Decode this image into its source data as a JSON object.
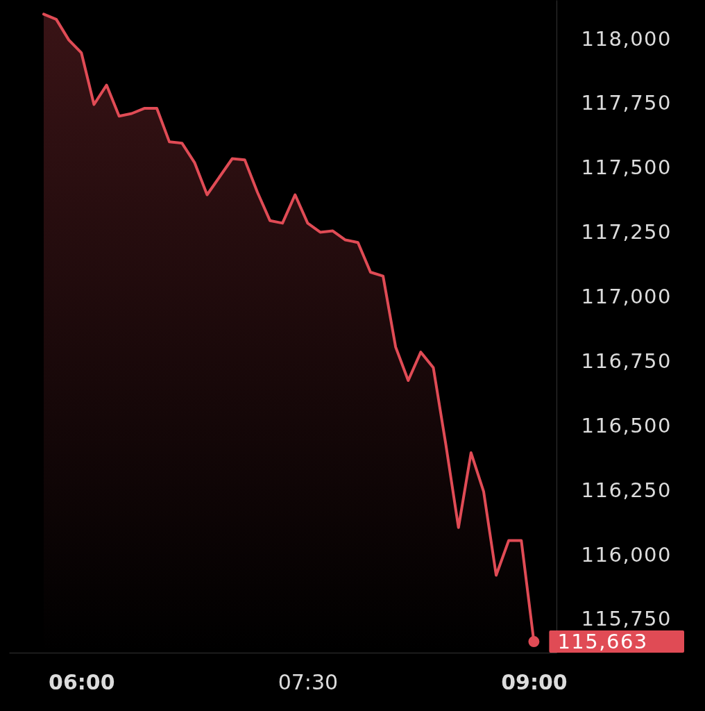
{
  "chart_data": {
    "type": "area",
    "xlim": [
      5.52,
      9.15
    ],
    "ylim": [
      115620,
      118150
    ],
    "xticks": [
      {
        "value": 6,
        "label": "06:00"
      },
      {
        "value": 7.5,
        "label": "07:30"
      },
      {
        "value": 9,
        "label": "09:00"
      }
    ],
    "yticks": [
      {
        "value": 115750,
        "label": "115,750"
      },
      {
        "value": 116000,
        "label": "116,000"
      },
      {
        "value": 116250,
        "label": "116,250"
      },
      {
        "value": 116500,
        "label": "116,500"
      },
      {
        "value": 116750,
        "label": "116,750"
      },
      {
        "value": 117000,
        "label": "117,000"
      },
      {
        "value": 117250,
        "label": "117,250"
      },
      {
        "value": 117500,
        "label": "117,500"
      },
      {
        "value": 117750,
        "label": "117,750"
      },
      {
        "value": 118000,
        "label": "118,000"
      }
    ],
    "series": [
      {
        "color": "#e04b55",
        "x": [
          5.75,
          5.8333,
          5.9167,
          6,
          6.0833,
          6.1667,
          6.25,
          6.3333,
          6.4167,
          6.5,
          6.5833,
          6.6667,
          6.75,
          6.8333,
          6.9167,
          7,
          7.0833,
          7.1667,
          7.25,
          7.3333,
          7.4167,
          7.5,
          7.5833,
          7.6667,
          7.75,
          7.8333,
          7.9167,
          8,
          8.0833,
          8.1667,
          8.25,
          8.3333,
          8.4167,
          8.5,
          8.5833,
          8.6667,
          8.75,
          8.8333,
          8.9167,
          9
        ],
        "values": [
          118095,
          118075,
          117995,
          117945,
          117745,
          117820,
          117700,
          117710,
          117730,
          117730,
          117600,
          117595,
          117520,
          117395,
          117465,
          117535,
          117530,
          117405,
          117295,
          117285,
          117395,
          117285,
          117250,
          117255,
          117220,
          117210,
          117095,
          117080,
          116805,
          116675,
          116785,
          116725,
          116425,
          116105,
          116395,
          116245,
          115920,
          116055,
          116055,
          115663
        ]
      },
      {
        "type": "scatter",
        "color": "#e04b55",
        "marker": "circle",
        "x": [
          9
        ],
        "values": [
          115663
        ],
        "value_labels": [
          "115,663"
        ]
      }
    ]
  }
}
